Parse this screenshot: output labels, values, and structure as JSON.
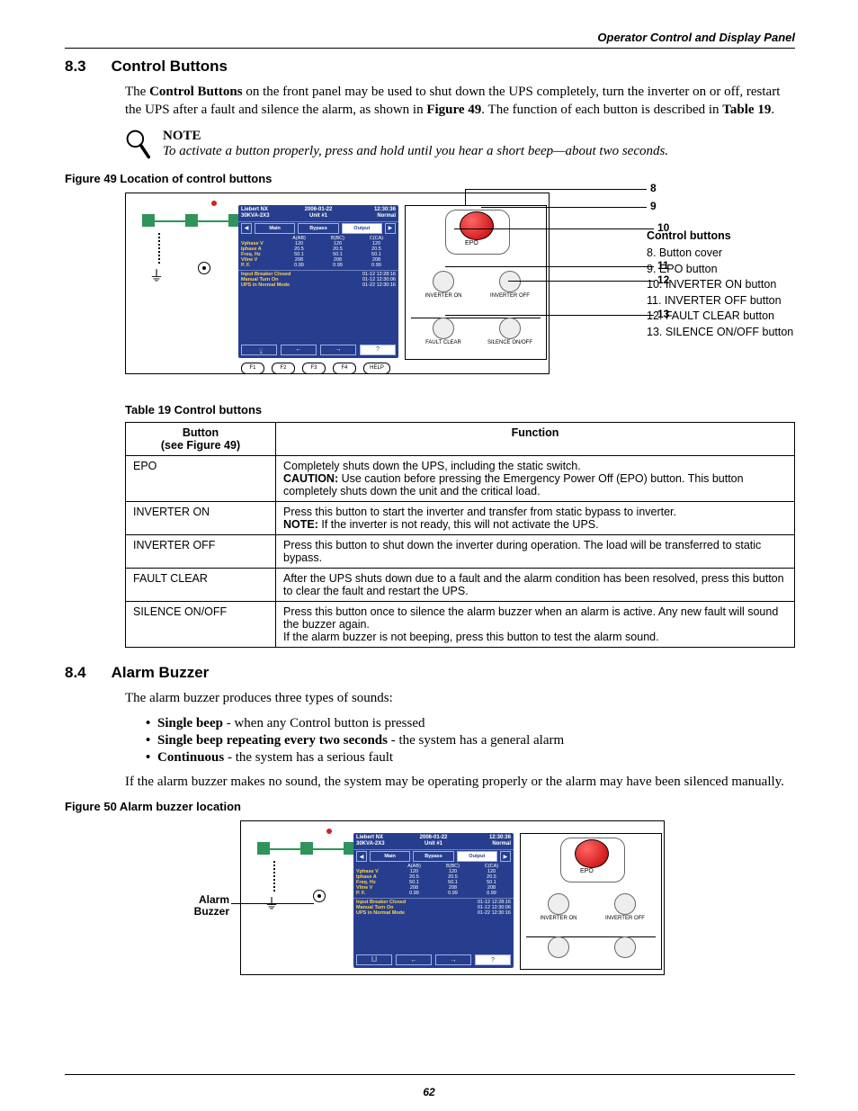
{
  "running_head": "Operator Control and Display Panel",
  "page_number": "62",
  "sec83": {
    "num": "8.3",
    "title": "Control Buttons",
    "para": "The <b>Control Buttons</b> on the front panel may be used to shut down the UPS completely, turn the inverter on or off, restart the UPS after a fault and silence the alarm, as shown in <b>Figure 49</b>. The function of each button is described in <b>Table 19</b>."
  },
  "note": {
    "label": "NOTE",
    "body": "To activate a button properly, press and hold until you hear a short beep—about two seconds."
  },
  "fig49_caption": "Figure 49  Location of control buttons",
  "tab19_caption": "Table 19      Control buttons",
  "lcd": {
    "hdr_left_a": "Liebert NX",
    "hdr_left_b": "30KVA-2X3",
    "hdr_mid_a": "2006-01-22",
    "hdr_mid_b": "Unit #1",
    "hdr_right_a": "12:30:36",
    "hdr_right_b": "Normal",
    "tabs": [
      "Main",
      "Bypass",
      "Output"
    ],
    "selected_tab": 2,
    "cols": [
      "A(AB)",
      "B(BC)",
      "C(CA)"
    ],
    "rows": [
      {
        "label": "Vphase V",
        "vals": [
          "120",
          "120",
          "120"
        ]
      },
      {
        "label": "Iphase   A",
        "vals": [
          "20.5",
          "20.5",
          "20.5"
        ]
      },
      {
        "label": "Freq. Hz",
        "vals": [
          "50.1",
          "50.1",
          "50.1"
        ]
      },
      {
        "label": "Vline V",
        "vals": [
          "208",
          "208",
          "208"
        ]
      },
      {
        "label": "P. F.",
        "vals": [
          "0.99",
          "0.99",
          "0.99"
        ]
      }
    ],
    "log": [
      {
        "t": "Input Breaker Closed",
        "d": "01-12  12:28:16"
      },
      {
        "t": "Manual Turn On",
        "d": "01-12  12:30:06"
      },
      {
        "t": "UPS in Normal Mode",
        "d": "01-22  12:30:16"
      }
    ],
    "fkeys": [
      "F1",
      "F2",
      "F3",
      "F4",
      "HELP"
    ]
  },
  "ctl": {
    "epo": "EPO",
    "inv_on": "INVERTER ON",
    "inv_off": "INVERTER OFF",
    "fault": "FAULT CLEAR",
    "silence": "SILENCE ON/OFF"
  },
  "callouts": [
    "8",
    "9",
    "10",
    "11",
    "12",
    "13"
  ],
  "legend": {
    "title": "Control buttons",
    "items": [
      "8.   Button cover",
      "9.   EPO button",
      "10. INVERTER ON button",
      "11. INVERTER OFF button",
      "12. FAULT CLEAR button",
      "13. SILENCE ON/OFF button"
    ]
  },
  "table19": {
    "head": [
      "Button\n(see Figure 49)",
      "Function"
    ],
    "rows": [
      [
        "EPO",
        "Completely shuts down the UPS, including the static switch.\n<b>CAUTION:</b> Use caution before pressing the Emergency Power Off (EPO) button. This button completely shuts down the unit and the critical load."
      ],
      [
        "INVERTER ON",
        "Press this button to start the inverter and transfer from static bypass to inverter.\n<b>NOTE:</b> If the inverter is not ready, this will not activate the UPS."
      ],
      [
        "INVERTER OFF",
        "Press this button to shut down the inverter during operation. The load will be transferred to static bypass."
      ],
      [
        "FAULT CLEAR",
        "After the UPS shuts down due to a fault and the alarm condition has been resolved, press this button to clear the fault and restart the UPS."
      ],
      [
        "SILENCE ON/OFF",
        "Press this button once to silence the alarm buzzer when an alarm is active. Any new fault will sound the buzzer again.\nIf the alarm buzzer is not beeping, press this button to test the alarm sound."
      ]
    ]
  },
  "sec84": {
    "num": "8.4",
    "title": "Alarm Buzzer",
    "para": "The alarm buzzer produces three types of sounds:",
    "bullets": [
      "<b>Single beep</b> - when any Control button is pressed",
      "<b>Single beep repeating every two seconds</b> - the system has a general alarm",
      "<b>Continuous</b> - the system has a serious fault"
    ],
    "para2": "If the alarm buzzer makes no sound, the system may be operating properly or the alarm may have been silenced manually."
  },
  "fig50_caption": "Figure 50  Alarm buzzer location",
  "buzzer_label_a": "Alarm",
  "buzzer_label_b": "Buzzer",
  "colors": {
    "lcd_bg": "#273e8e",
    "lcd_amber": "#ffd24d",
    "green": "#2f935b",
    "red": "#c00000"
  }
}
